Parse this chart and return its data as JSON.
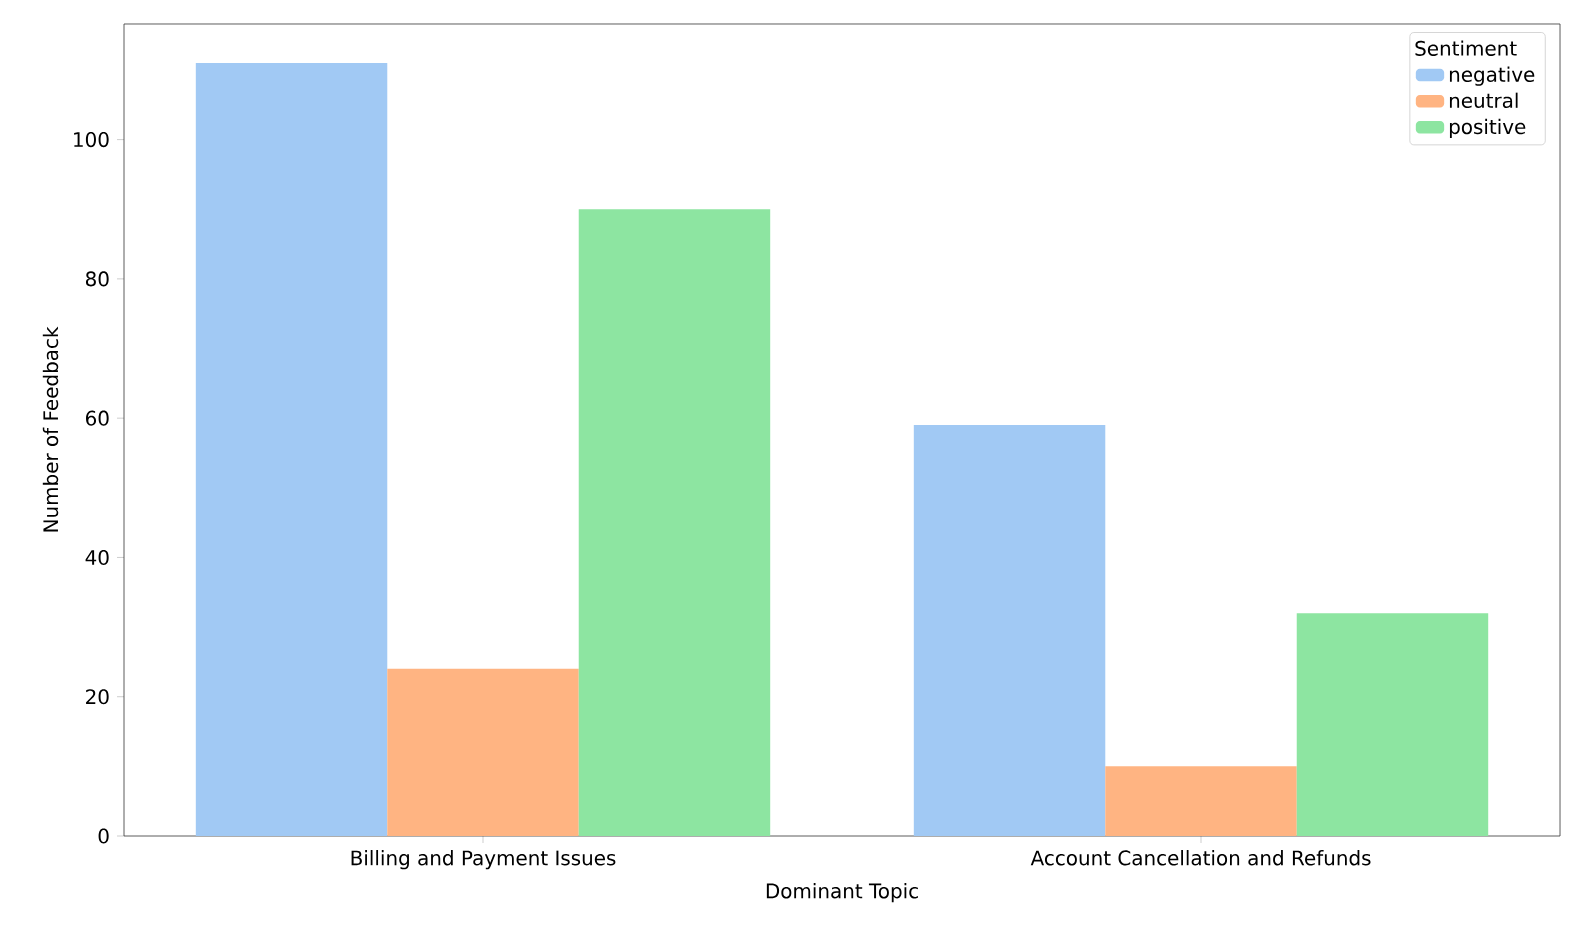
{
  "chart_data": {
    "type": "bar",
    "xlabel": "Dominant Topic",
    "ylabel": "Number of Feedback",
    "legend_title": "Sentiment",
    "categories": [
      "Billing and Payment Issues",
      "Account Cancellation and Refunds"
    ],
    "series": [
      {
        "name": "negative",
        "color": "#a1c9f4",
        "values": [
          111,
          59
        ]
      },
      {
        "name": "neutral",
        "color": "#ffb482",
        "values": [
          24,
          10
        ]
      },
      {
        "name": "positive",
        "color": "#8de5a1",
        "values": [
          90,
          32
        ]
      }
    ],
    "ylim": [
      0,
      116.6
    ],
    "yticks": [
      0,
      20,
      40,
      60,
      80,
      100
    ],
    "grid": false,
    "legend": "top right"
  }
}
